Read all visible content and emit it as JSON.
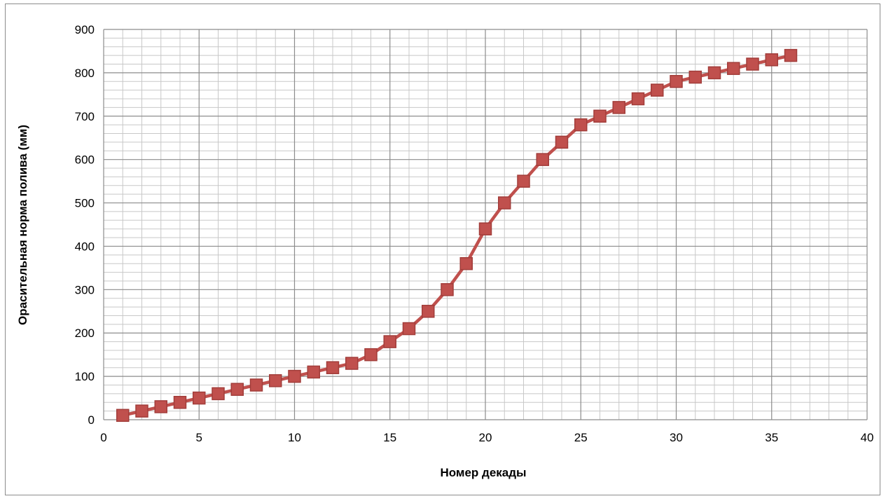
{
  "chart_data": {
    "type": "line",
    "title": "",
    "xlabel": "Номер декады",
    "ylabel": "Орасительная норма полива (мм)",
    "xlim": [
      0,
      40
    ],
    "ylim": [
      0,
      900
    ],
    "x_major_ticks": [
      0,
      5,
      10,
      15,
      20,
      25,
      30,
      35,
      40
    ],
    "y_major_ticks": [
      0,
      100,
      200,
      300,
      400,
      500,
      600,
      700,
      800,
      900
    ],
    "grid": "major and minor",
    "legend": "none",
    "series": [
      {
        "color": "#c0504d",
        "marker": "square",
        "x": [
          1,
          2,
          3,
          4,
          5,
          6,
          7,
          8,
          9,
          10,
          11,
          12,
          13,
          14,
          15,
          16,
          17,
          18,
          19,
          20,
          21,
          22,
          23,
          24,
          25,
          26,
          27,
          28,
          29,
          30,
          31,
          32,
          33,
          34,
          35,
          36
        ],
        "y": [
          10,
          20,
          30,
          40,
          50,
          60,
          70,
          80,
          90,
          100,
          110,
          120,
          130,
          150,
          180,
          210,
          250,
          300,
          360,
          440,
          500,
          550,
          600,
          640,
          680,
          700,
          720,
          740,
          760,
          780,
          790,
          800,
          810,
          820,
          830,
          840
        ]
      }
    ]
  }
}
